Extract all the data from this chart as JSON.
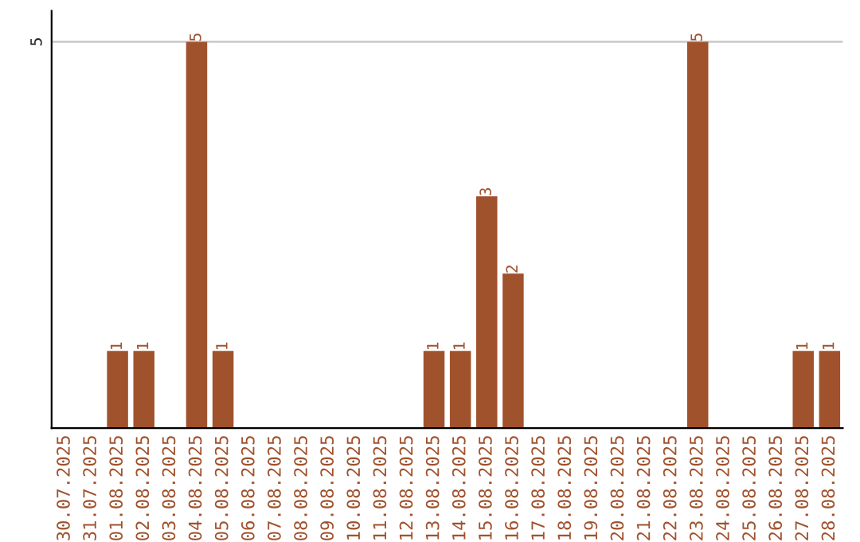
{
  "chart_data": {
    "type": "bar",
    "categories": [
      "30.07.2025",
      "31.07.2025",
      "01.08.2025",
      "02.08.2025",
      "03.08.2025",
      "04.08.2025",
      "05.08.2025",
      "06.08.2025",
      "07.08.2025",
      "08.08.2025",
      "09.08.2025",
      "10.08.2025",
      "11.08.2025",
      "12.08.2025",
      "13.08.2025",
      "14.08.2025",
      "15.08.2025",
      "16.08.2025",
      "17.08.2025",
      "18.08.2025",
      "19.08.2025",
      "20.08.2025",
      "21.08.2025",
      "22.08.2025",
      "23.08.2025",
      "24.08.2025",
      "25.08.2025",
      "26.08.2025",
      "27.08.2025",
      "28.08.2025"
    ],
    "values": [
      null,
      null,
      1,
      1,
      null,
      5,
      1,
      null,
      null,
      null,
      null,
      null,
      null,
      null,
      1,
      1,
      3,
      2,
      null,
      null,
      null,
      null,
      null,
      null,
      5,
      null,
      null,
      null,
      1,
      1
    ],
    "value_labels": [
      null,
      null,
      "1",
      "1",
      null,
      "5",
      "1",
      null,
      null,
      null,
      null,
      null,
      null,
      null,
      "1",
      "1",
      "3",
      "2",
      null,
      null,
      null,
      null,
      null,
      null,
      "5",
      null,
      null,
      null,
      "1",
      "1"
    ],
    "color": "#a0522d",
    "ylim": [
      0,
      5.4
    ],
    "yticks": [
      5
    ],
    "grid": "y"
  }
}
